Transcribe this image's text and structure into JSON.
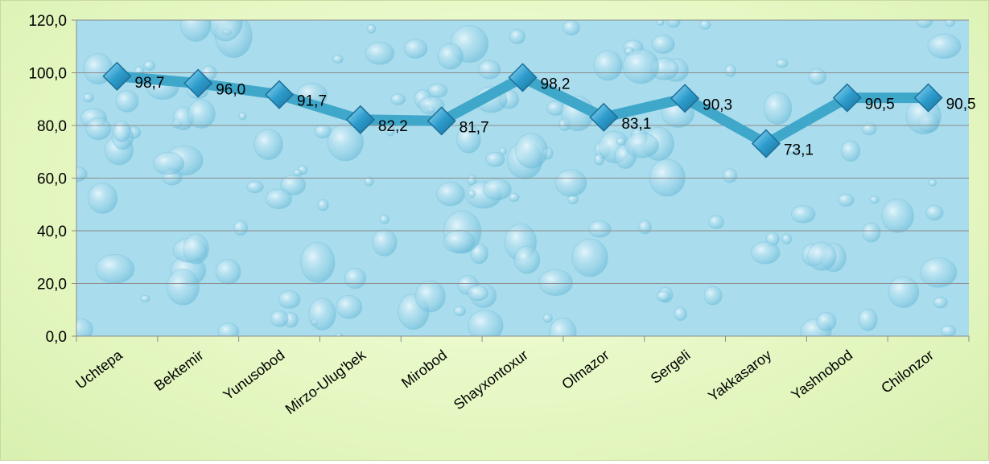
{
  "chart_data": {
    "type": "line",
    "categories": [
      "Uchtepa",
      "Bektemir",
      "Yunusobod",
      "Mirzo-Ulug'bek",
      "Mirobod",
      "Shayxontoxur",
      "Olmazor",
      "Sergeli",
      "Yakkasaroy",
      "Yashnobod",
      "Chilonzor"
    ],
    "values": [
      98.7,
      96.0,
      91.7,
      82.2,
      81.7,
      98.2,
      83.1,
      90.3,
      73.1,
      90.5,
      90.5
    ],
    "data_labels": [
      "98,7",
      "96,0",
      "91,7",
      "82,2",
      "81,7",
      "98,2",
      "83,1",
      "90,3",
      "73,1",
      "90,5",
      "90,5"
    ],
    "y_ticks": [
      0,
      20,
      40,
      60,
      80,
      100,
      120
    ],
    "y_tick_labels": [
      "0,0",
      "20,0",
      "40,0",
      "60,0",
      "80,0",
      "100,0",
      "120,0"
    ],
    "ylim": [
      0,
      120
    ],
    "grid": true,
    "legend": "none",
    "colors": {
      "line": "#3fa7c9",
      "marker": "#2f97c2",
      "plot_background": "#a9dcec",
      "gridline": "#8c8c8c",
      "page_background": "#e6f8c4"
    },
    "marker": "diamond"
  }
}
